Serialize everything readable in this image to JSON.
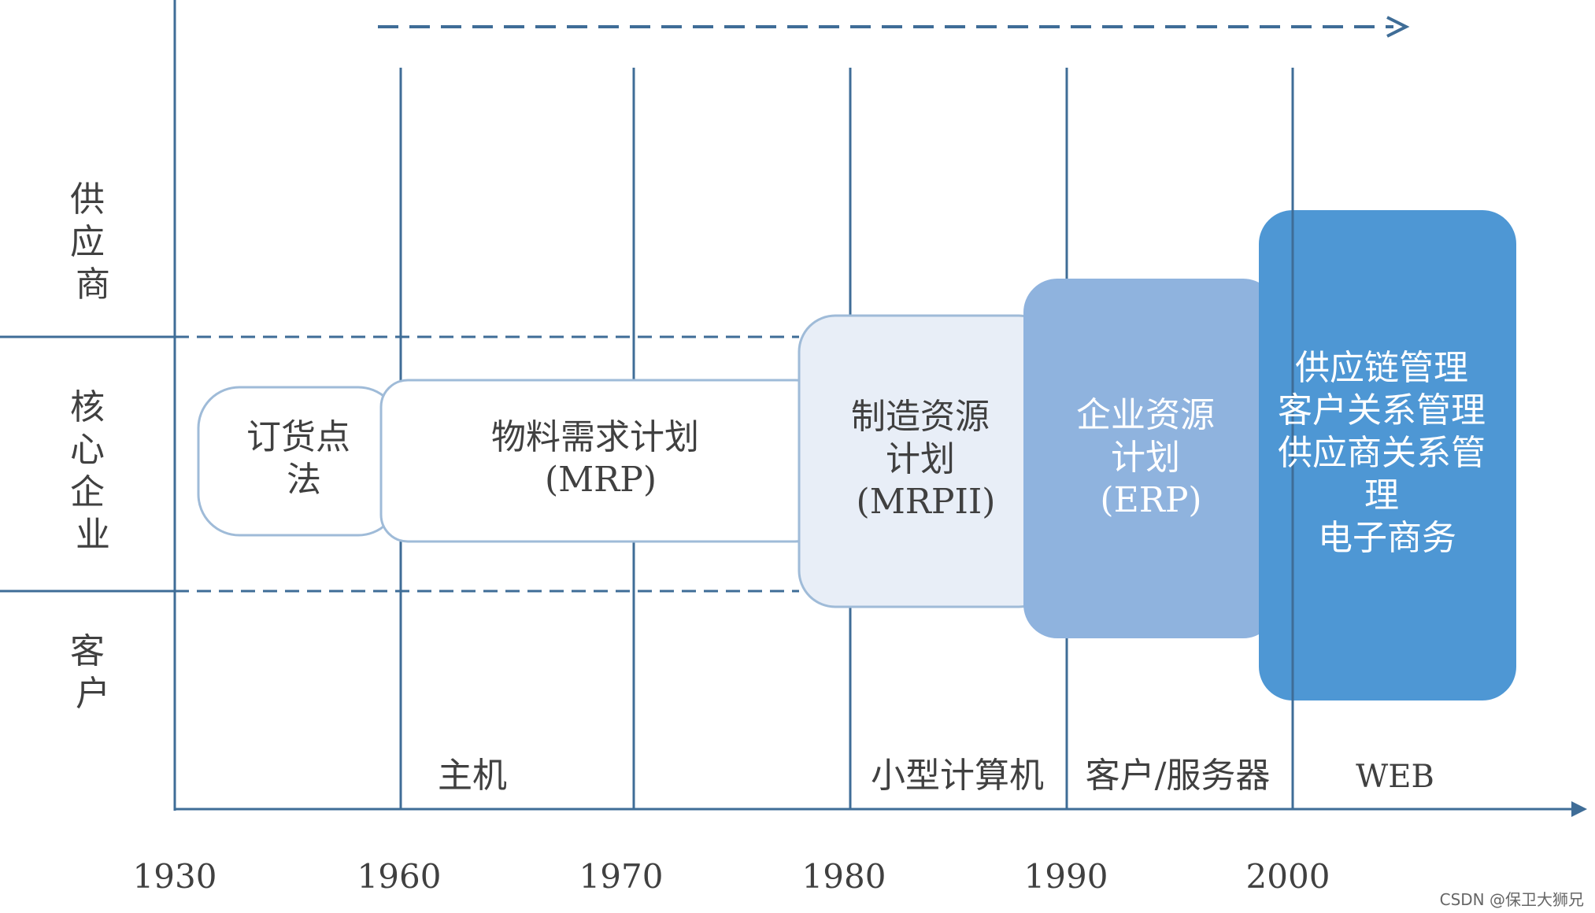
{
  "row_labels": {
    "supplier": [
      "供",
      "应",
      "商"
    ],
    "core_enterprise": [
      "核",
      "心",
      "企",
      "业"
    ],
    "customer": [
      "客",
      "户"
    ]
  },
  "years": [
    "1930",
    "1960",
    "1970",
    "1980",
    "1990",
    "2000"
  ],
  "platforms": {
    "mainframe": "主机",
    "minicomputer": "小型计算机",
    "client_server": "客户/服务器",
    "web": "WEB"
  },
  "stages": {
    "rop": {
      "lines": [
        "订货点",
        "法"
      ]
    },
    "mrp": {
      "lines": [
        "物料需求计划",
        "(MRP)"
      ]
    },
    "mrp2": {
      "lines": [
        "制造资源",
        "计划",
        "(MRPII)"
      ]
    },
    "erp": {
      "lines": [
        "企业资源",
        "计划",
        "(ERP)"
      ]
    },
    "scm": {
      "lines": [
        "供应链管理",
        "客户关系管理",
        "供应商关系管",
        "理",
        "电子商务"
      ]
    }
  },
  "watermark": "CSDN @保卫大狮兄",
  "colors": {
    "axis": "#3f6d97",
    "box_outline": "#9fbbd8",
    "mrp2_fill": "#e8eef7",
    "erp_fill": "#8fb3de",
    "scm_fill": "#4e97d4",
    "dark_text": "#404040",
    "erp_text": "#ffffff",
    "scm_text": "#ffffff"
  }
}
